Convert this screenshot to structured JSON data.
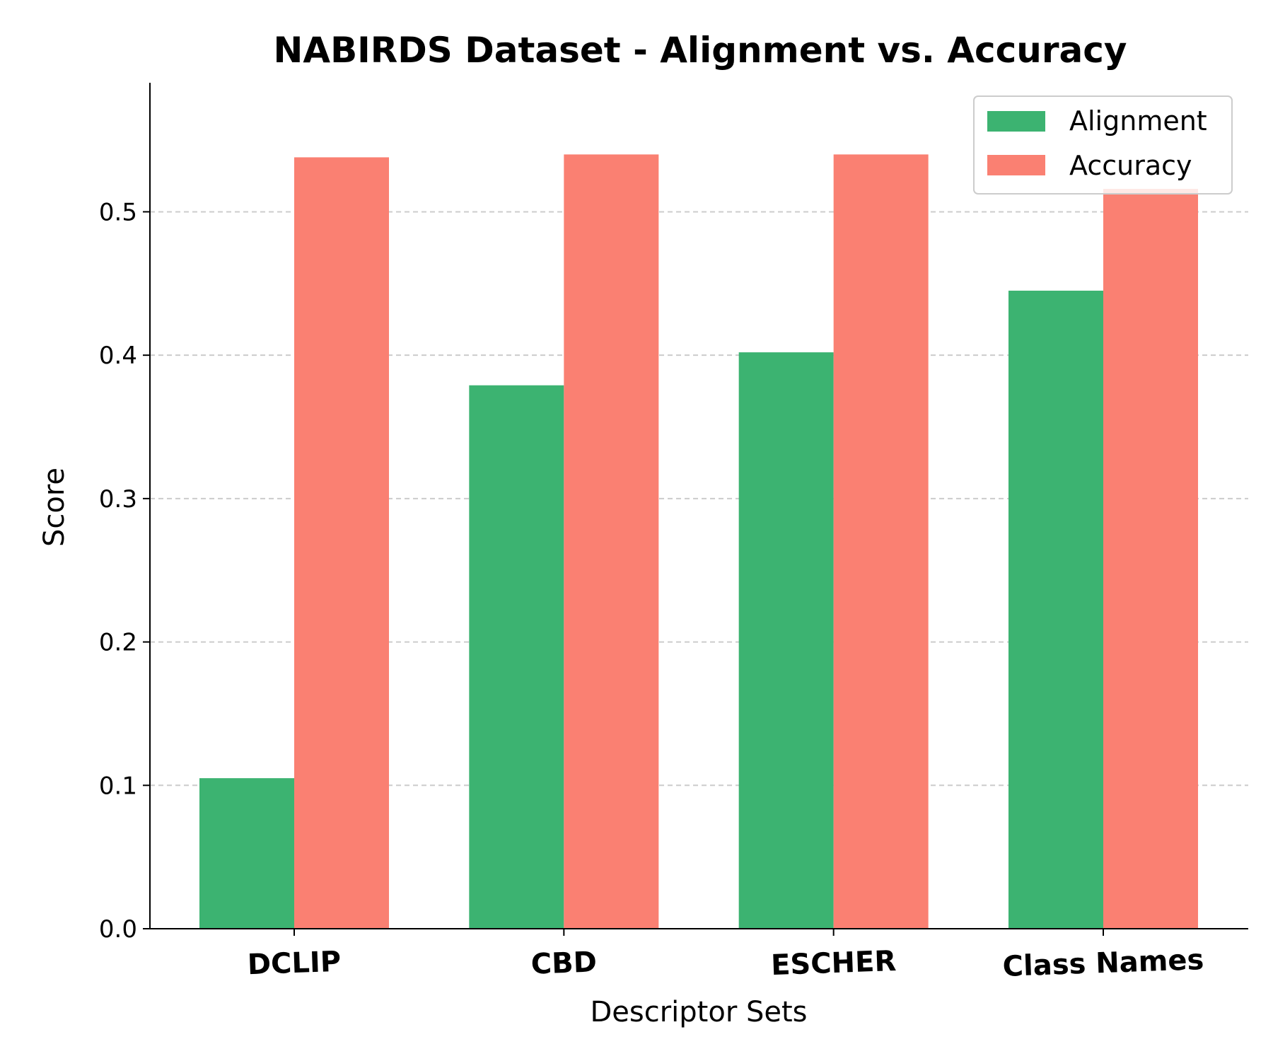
{
  "chart_data": {
    "type": "bar",
    "title": "NABIRDS Dataset - Alignment vs. Accuracy",
    "xlabel": "Descriptor Sets",
    "ylabel": "Score",
    "categories": [
      "DCLIP",
      "CBD",
      "ESCHER",
      "Class Names"
    ],
    "series": [
      {
        "name": "Alignment",
        "color": "#3cb371",
        "values": [
          0.105,
          0.379,
          0.402,
          0.445
        ]
      },
      {
        "name": "Accuracy",
        "color": "#fa8072",
        "values": [
          0.538,
          0.54,
          0.54,
          0.516
        ]
      }
    ],
    "ylim": [
      0,
      0.59
    ],
    "yticks": [
      0.0,
      0.1,
      0.2,
      0.3,
      0.4,
      0.5
    ],
    "ytick_labels": [
      "0.0",
      "0.1",
      "0.2",
      "0.3",
      "0.4",
      "0.5"
    ],
    "grid": "y-dashed",
    "legend_position": "top-right"
  }
}
